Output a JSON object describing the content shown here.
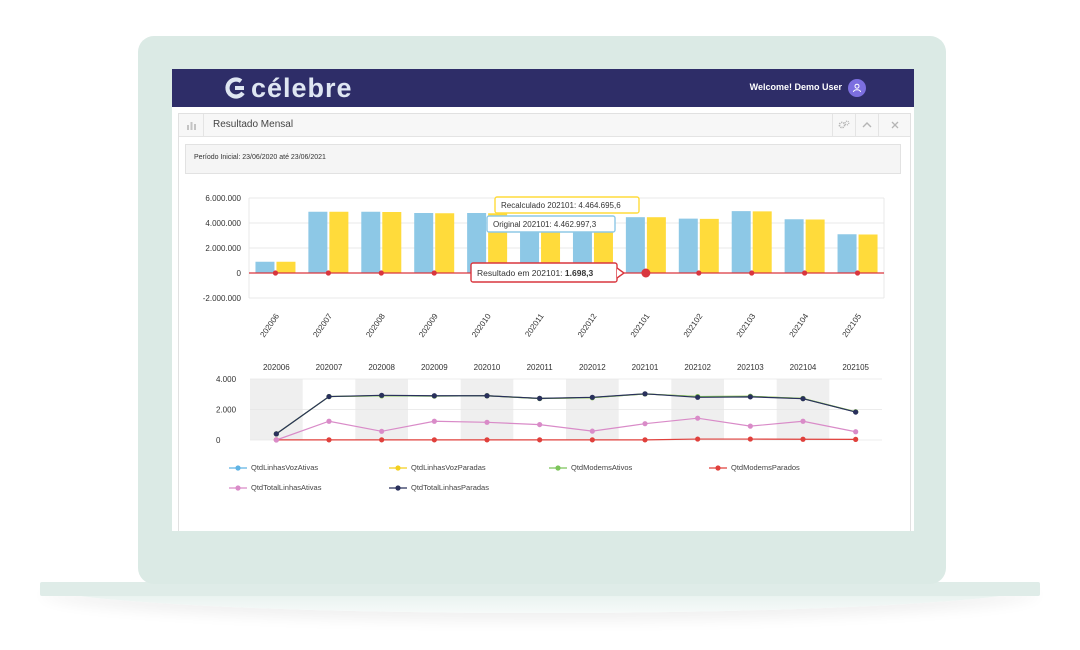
{
  "app": {
    "logo_text": "célebre",
    "welcome": "Welcome! Demo User"
  },
  "panel": {
    "title": "Resultado Mensal",
    "filter_text": "Período Inicial: 23/06/2020 até 23/06/2021"
  },
  "colors": {
    "topbar": "#2e2d68",
    "bar_recalculado": "#8dc8e6",
    "bar_original": "#ffdb3b",
    "resultado": "#d9363e"
  },
  "chart_data": [
    {
      "type": "bar",
      "categories": [
        "202006",
        "202007",
        "202008",
        "202009",
        "202010",
        "202011",
        "202012",
        "202101",
        "202102",
        "202103",
        "202104",
        "202105"
      ],
      "series": [
        {
          "name": "Recalculado",
          "values": [
            900000,
            4900000,
            4900000,
            4800000,
            4800000,
            4500000,
            4500000,
            4464695.6,
            4350000,
            4950000,
            4300000,
            3100000
          ]
        },
        {
          "name": "Original",
          "values": [
            900000,
            4900000,
            4880000,
            4780000,
            4780000,
            4480000,
            4480000,
            4462997.3,
            4330000,
            4930000,
            4280000,
            3080000
          ]
        },
        {
          "name": "Resultado",
          "values": [
            0,
            0,
            0,
            0,
            0,
            0,
            0,
            1698.3,
            0,
            0,
            0,
            0
          ]
        }
      ],
      "yticks": [
        "6.000.000",
        "4.000.000",
        "2.000.000",
        "0",
        "-2.000.000"
      ],
      "ylim": [
        -2000000,
        6000000
      ],
      "tooltips": {
        "recalculado": "Recalculado 202101: 4.464.695,6",
        "original": "Original 202101: 4.462.997,3",
        "resultado_prefix": "Resultado em 202101: ",
        "resultado_value": "1.698,3"
      }
    },
    {
      "type": "line",
      "categories": [
        "202006",
        "202007",
        "202008",
        "202009",
        "202010",
        "202011",
        "202012",
        "202101",
        "202102",
        "202103",
        "202104",
        "202105"
      ],
      "yticks": [
        "4.000",
        "2.000",
        "0"
      ],
      "ylim": [
        0,
        4000
      ],
      "series": [
        {
          "name": "QtdLinhasVozAtivas",
          "color": "#5fb3e4",
          "values": [
            400,
            2850,
            2900,
            2880,
            2900,
            2720,
            2780,
            3020,
            2850,
            2860,
            2720,
            1850
          ]
        },
        {
          "name": "QtdLinhasVozParadas",
          "color": "#f3cf1f",
          "values": [
            400,
            2850,
            2900,
            2880,
            2900,
            2720,
            2780,
            3020,
            2850,
            2860,
            2720,
            1850
          ]
        },
        {
          "name": "QtdModemsAtivos",
          "color": "#7cc45a",
          "values": [
            400,
            2850,
            2900,
            2880,
            2900,
            2720,
            2780,
            3020,
            2850,
            2860,
            2720,
            1850
          ]
        },
        {
          "name": "QtdModemsParados",
          "color": "#e0403c",
          "values": [
            10,
            10,
            10,
            10,
            10,
            10,
            10,
            10,
            60,
            60,
            50,
            40
          ]
        },
        {
          "name": "QtdTotalLinhasAtivas",
          "color": "#d98bc8",
          "values": [
            0,
            1230,
            570,
            1230,
            1160,
            1010,
            580,
            1070,
            1430,
            910,
            1230,
            540
          ]
        },
        {
          "name": "QtdTotalLinhasParadas",
          "color": "#29305c",
          "values": [
            400,
            2850,
            2930,
            2900,
            2900,
            2730,
            2800,
            3030,
            2800,
            2830,
            2710,
            1830
          ]
        }
      ]
    }
  ]
}
